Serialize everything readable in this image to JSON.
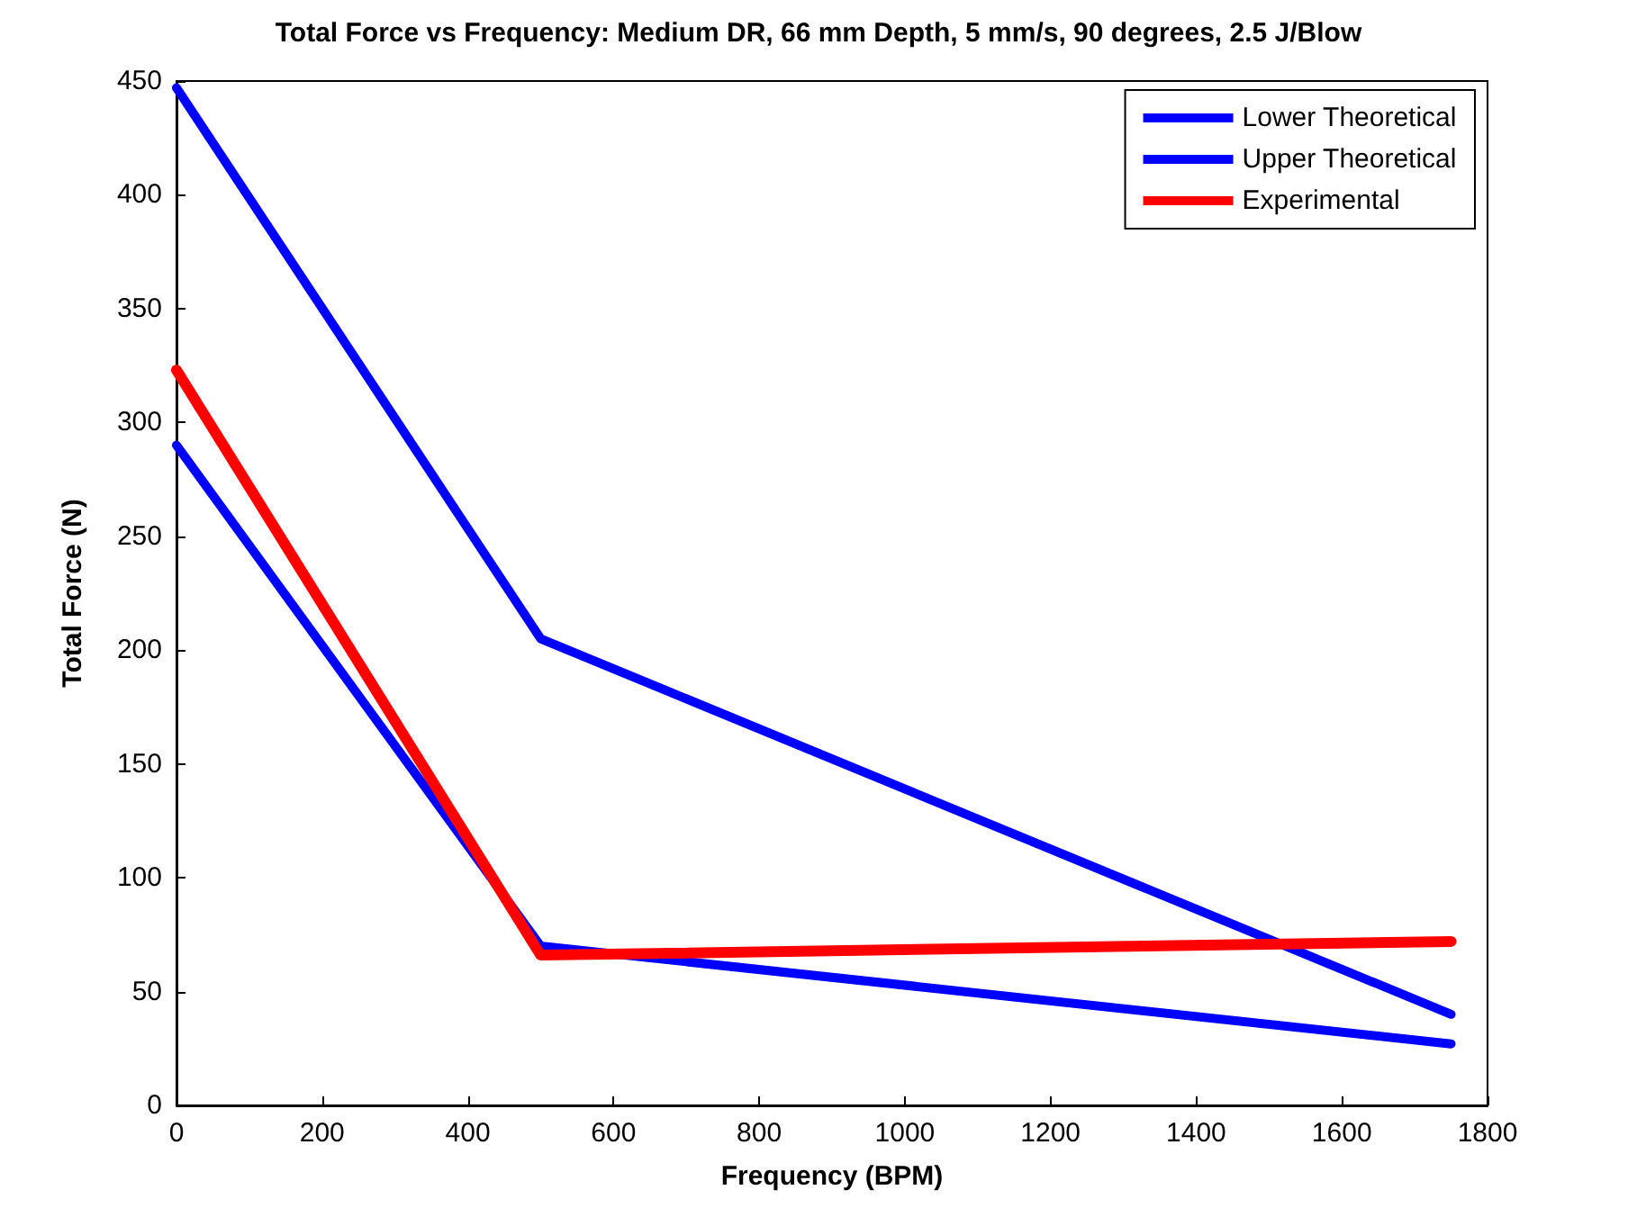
{
  "chart_data": {
    "type": "line",
    "title": "Total Force vs Frequency: Medium DR, 66 mm Depth, 5 mm/s, 90 degrees, 2.5 J/Blow",
    "xlabel": "Frequency (BPM)",
    "ylabel": "Total Force (N)",
    "x": [
      0,
      500,
      1750
    ],
    "series": [
      {
        "name": "Lower Theoretical",
        "color": "#0000ff",
        "values": [
          290,
          70,
          27
        ]
      },
      {
        "name": "Upper Theoretical",
        "color": "#0000ff",
        "values": [
          447,
          205,
          40
        ]
      },
      {
        "name": "Experimental",
        "color": "#ff0000",
        "values": [
          323,
          66,
          72
        ]
      }
    ],
    "xlim": [
      0,
      1800
    ],
    "xticks": [
      0,
      200,
      400,
      600,
      800,
      1000,
      1200,
      1400,
      1600,
      1800
    ],
    "ylim": [
      0,
      450
    ],
    "yticks": [
      0,
      50,
      100,
      150,
      200,
      250,
      300,
      350,
      400,
      450
    ],
    "grid": false,
    "legend": "top right",
    "marker": "none",
    "line_style": "solid"
  }
}
